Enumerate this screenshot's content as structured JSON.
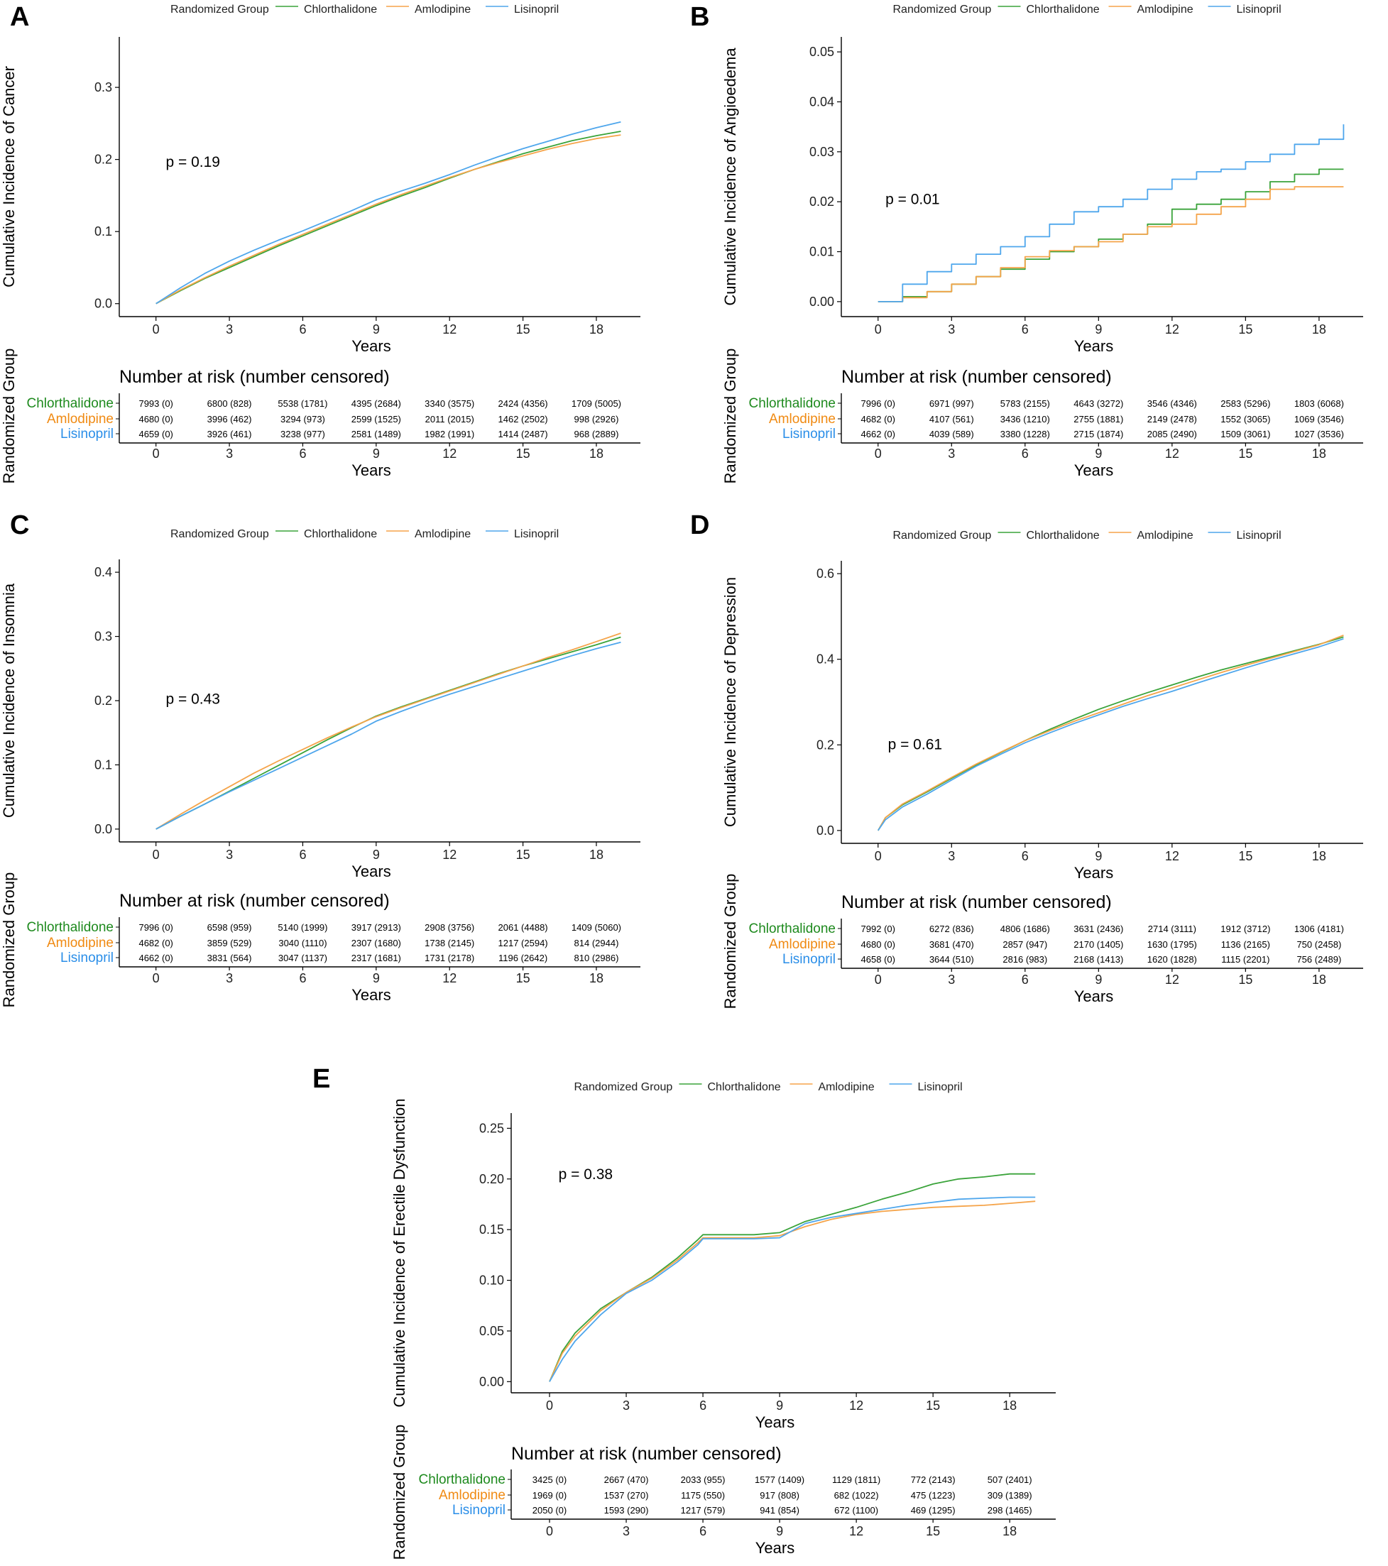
{
  "figure": {
    "panel_count": 5
  },
  "legend": {
    "title": "Randomized Group",
    "groups": [
      "Chlorthalidone",
      "Amlodipine",
      "Lisinopril"
    ],
    "colors": [
      "#3aa33a",
      "#f5a44a",
      "#4ea6ec"
    ],
    "risk_label_colors": [
      "#1e8a1e",
      "#f08a12",
      "#2a8ee8"
    ]
  },
  "risk_table": {
    "title": "Number at risk (number censored)",
    "y_label": "Randomized Group",
    "x_label": "Years"
  },
  "chart_data": [
    {
      "panel": "A",
      "type": "line",
      "title": "",
      "xlabel": "Years",
      "ylabel": "Cumulative Incidence of Cancer",
      "xlim": [
        -1.5,
        19.8
      ],
      "ylim": [
        -0.018,
        0.37
      ],
      "xticks": [
        0,
        3,
        6,
        9,
        12,
        15,
        18
      ],
      "yticks": [
        "0.0",
        "0.1",
        "0.2",
        "0.3"
      ],
      "yticks_values": [
        0,
        0.1,
        0.2,
        0.3
      ],
      "p_value": "p = 0.19",
      "p_pos": [
        0.4,
        0.19
      ],
      "series": [
        {
          "name": "Chlorthalidone",
          "x": [
            0,
            1,
            2,
            3,
            4,
            5,
            6,
            7,
            8,
            9,
            10,
            11,
            12,
            13,
            14,
            15,
            16,
            17,
            18,
            19
          ],
          "y": [
            0,
            0.018,
            0.035,
            0.05,
            0.065,
            0.08,
            0.094,
            0.108,
            0.122,
            0.136,
            0.149,
            0.161,
            0.174,
            0.186,
            0.197,
            0.208,
            0.217,
            0.226,
            0.233,
            0.239
          ]
        },
        {
          "name": "Amlodipine",
          "x": [
            0,
            1,
            2,
            3,
            4,
            5,
            6,
            7,
            8,
            9,
            10,
            11,
            12,
            13,
            14,
            15,
            16,
            17,
            18,
            19
          ],
          "y": [
            0,
            0.019,
            0.036,
            0.052,
            0.067,
            0.082,
            0.096,
            0.11,
            0.124,
            0.138,
            0.151,
            0.163,
            0.175,
            0.186,
            0.196,
            0.205,
            0.214,
            0.222,
            0.229,
            0.234
          ]
        },
        {
          "name": "Lisinopril",
          "x": [
            0,
            1,
            2,
            3,
            4,
            5,
            6,
            7,
            8,
            9,
            10,
            11,
            12,
            13,
            14,
            15,
            16,
            17,
            18,
            19
          ],
          "y": [
            0,
            0.022,
            0.042,
            0.059,
            0.074,
            0.088,
            0.101,
            0.115,
            0.129,
            0.144,
            0.156,
            0.167,
            0.179,
            0.192,
            0.204,
            0.215,
            0.225,
            0.235,
            0.244,
            0.252
          ]
        }
      ],
      "risk": [
        [
          "7993 (0)",
          "6800 (828)",
          "5538 (1781)",
          "4395 (2684)",
          "3340 (3575)",
          "2424 (4356)",
          "1709 (5005)"
        ],
        [
          "4680 (0)",
          "3996 (462)",
          "3294 (973)",
          "2599 (1525)",
          "2011 (2015)",
          "1462 (2502)",
          "998 (2926)"
        ],
        [
          "4659 (0)",
          "3926 (461)",
          "3238 (977)",
          "2581 (1489)",
          "1982 (1991)",
          "1414 (2487)",
          "968 (2889)"
        ]
      ]
    },
    {
      "panel": "B",
      "type": "line",
      "title": "",
      "xlabel": "Years",
      "ylabel": "Cumulative Incidence of Angioedema",
      "xlim": [
        -1.5,
        19.8
      ],
      "ylim": [
        -0.003,
        0.053
      ],
      "xticks": [
        0,
        3,
        6,
        9,
        12,
        15,
        18
      ],
      "yticks": [
        "0.00",
        "0.01",
        "0.02",
        "0.03",
        "0.04",
        "0.05"
      ],
      "yticks_values": [
        0,
        0.01,
        0.02,
        0.03,
        0.04,
        0.05
      ],
      "p_value": "p = 0.01",
      "p_pos": [
        0.3,
        0.0195
      ],
      "series": [
        {
          "name": "Chlorthalidone",
          "x": [
            0,
            1,
            2,
            3,
            4,
            5,
            6,
            7,
            8,
            9,
            10,
            11,
            12,
            13,
            14,
            15,
            16,
            17,
            18,
            19
          ],
          "y": [
            0,
            0.001,
            0.002,
            0.0035,
            0.005,
            0.0065,
            0.0085,
            0.01,
            0.011,
            0.0125,
            0.0135,
            0.0155,
            0.0185,
            0.0195,
            0.0205,
            0.022,
            0.024,
            0.0255,
            0.0265,
            0.0265
          ]
        },
        {
          "name": "Amlodipine",
          "x": [
            0,
            1,
            2,
            3,
            4,
            5,
            6,
            7,
            8,
            9,
            10,
            11,
            12,
            13,
            14,
            15,
            16,
            17,
            18,
            19
          ],
          "y": [
            0,
            0.0008,
            0.002,
            0.0035,
            0.005,
            0.0068,
            0.009,
            0.0102,
            0.011,
            0.012,
            0.0135,
            0.015,
            0.0155,
            0.0175,
            0.019,
            0.0205,
            0.0225,
            0.023,
            0.023,
            0.023
          ]
        },
        {
          "name": "Lisinopril",
          "x": [
            0,
            1,
            2,
            3,
            4,
            5,
            6,
            7,
            8,
            9,
            10,
            11,
            12,
            13,
            14,
            15,
            16,
            17,
            18,
            18.9,
            19
          ],
          "y": [
            0,
            0.0035,
            0.006,
            0.0075,
            0.0095,
            0.011,
            0.013,
            0.0155,
            0.018,
            0.019,
            0.0205,
            0.0225,
            0.0245,
            0.026,
            0.0265,
            0.028,
            0.0295,
            0.0315,
            0.0325,
            0.0325,
            0.0355
          ]
        }
      ],
      "risk": [
        [
          "7996 (0)",
          "6971 (997)",
          "5783 (2155)",
          "4643 (3272)",
          "3546 (4346)",
          "2583 (5296)",
          "1803 (6068)"
        ],
        [
          "4682 (0)",
          "4107 (561)",
          "3436 (1210)",
          "2755 (1881)",
          "2149 (2478)",
          "1552 (3065)",
          "1069 (3546)"
        ],
        [
          "4662 (0)",
          "4039 (589)",
          "3380 (1228)",
          "2715 (1874)",
          "2085 (2490)",
          "1509 (3061)",
          "1027 (3536)"
        ]
      ]
    },
    {
      "panel": "C",
      "type": "line",
      "title": "",
      "xlabel": "Years",
      "ylabel": "Cumulative Incidence of Insomnia",
      "xlim": [
        -1.5,
        19.8
      ],
      "ylim": [
        -0.02,
        0.42
      ],
      "xticks": [
        0,
        3,
        6,
        9,
        12,
        15,
        18
      ],
      "yticks": [
        "0.0",
        "0.1",
        "0.2",
        "0.3",
        "0.4"
      ],
      "yticks_values": [
        0,
        0.1,
        0.2,
        0.3,
        0.4
      ],
      "p_value": "p = 0.43",
      "p_pos": [
        0.4,
        0.195
      ],
      "series": [
        {
          "name": "Chlorthalidone",
          "x": [
            0,
            1,
            2,
            3,
            4,
            5,
            6,
            7,
            8,
            9,
            10,
            11,
            12,
            13,
            14,
            15,
            16,
            17,
            18,
            19
          ],
          "y": [
            0,
            0.02,
            0.039,
            0.059,
            0.079,
            0.099,
            0.119,
            0.139,
            0.158,
            0.176,
            0.19,
            0.203,
            0.216,
            0.229,
            0.242,
            0.254,
            0.265,
            0.276,
            0.287,
            0.299
          ]
        },
        {
          "name": "Amlodipine",
          "x": [
            0,
            1,
            2,
            3,
            4,
            5,
            6,
            7,
            8,
            9,
            10,
            11,
            12,
            13,
            14,
            15,
            16,
            17,
            18,
            19
          ],
          "y": [
            0,
            0.023,
            0.045,
            0.066,
            0.087,
            0.106,
            0.124,
            0.142,
            0.159,
            0.175,
            0.189,
            0.202,
            0.215,
            0.228,
            0.241,
            0.254,
            0.267,
            0.279,
            0.292,
            0.305
          ]
        },
        {
          "name": "Lisinopril",
          "x": [
            0,
            1,
            2,
            3,
            4,
            5,
            6,
            7,
            8,
            9,
            10,
            11,
            12,
            13,
            14,
            15,
            16,
            17,
            18,
            19
          ],
          "y": [
            0,
            0.02,
            0.039,
            0.058,
            0.076,
            0.094,
            0.112,
            0.13,
            0.148,
            0.168,
            0.183,
            0.197,
            0.21,
            0.222,
            0.234,
            0.246,
            0.258,
            0.27,
            0.281,
            0.291
          ]
        }
      ],
      "risk": [
        [
          "7996 (0)",
          "6598 (959)",
          "5140 (1999)",
          "3917 (2913)",
          "2908 (3756)",
          "2061 (4488)",
          "1409 (5060)"
        ],
        [
          "4682 (0)",
          "3859 (529)",
          "3040 (1110)",
          "2307 (1680)",
          "1738 (2145)",
          "1217 (2594)",
          "814 (2944)"
        ],
        [
          "4662 (0)",
          "3831 (564)",
          "3047 (1137)",
          "2317 (1681)",
          "1731 (2178)",
          "1196 (2642)",
          "810 (2986)"
        ]
      ]
    },
    {
      "panel": "D",
      "type": "line",
      "title": "",
      "xlabel": "Years",
      "ylabel": "Cumulative Incidence of Depression",
      "xlim": [
        -1.5,
        19.8
      ],
      "ylim": [
        -0.03,
        0.63
      ],
      "xticks": [
        0,
        3,
        6,
        9,
        12,
        15,
        18
      ],
      "yticks": [
        "0.0",
        "0.2",
        "0.4",
        "0.6"
      ],
      "yticks_values": [
        0,
        0.2,
        0.4,
        0.6
      ],
      "p_value": "p = 0.61",
      "p_pos": [
        0.4,
        0.19
      ],
      "series": [
        {
          "name": "Chlorthalidone",
          "x": [
            0,
            0.3,
            1,
            2,
            3,
            4,
            5,
            6,
            7,
            8,
            9,
            10,
            11,
            12,
            13,
            14,
            15,
            16,
            17,
            18,
            19
          ],
          "y": [
            0,
            0.03,
            0.06,
            0.09,
            0.122,
            0.153,
            0.182,
            0.21,
            0.236,
            0.26,
            0.283,
            0.303,
            0.322,
            0.34,
            0.358,
            0.375,
            0.39,
            0.405,
            0.42,
            0.435,
            0.452
          ]
        },
        {
          "name": "Amlodipine",
          "x": [
            0,
            0.3,
            1,
            2,
            3,
            4,
            5,
            6,
            7,
            8,
            9,
            10,
            11,
            12,
            13,
            14,
            15,
            16,
            17,
            18,
            19
          ],
          "y": [
            0,
            0.03,
            0.062,
            0.092,
            0.124,
            0.155,
            0.183,
            0.21,
            0.233,
            0.255,
            0.275,
            0.295,
            0.315,
            0.333,
            0.351,
            0.369,
            0.386,
            0.402,
            0.418,
            0.434,
            0.456
          ]
        },
        {
          "name": "Lisinopril",
          "x": [
            0,
            0.3,
            1,
            2,
            3,
            4,
            5,
            6,
            7,
            8,
            9,
            10,
            11,
            12,
            13,
            14,
            15,
            16,
            17,
            18,
            19
          ],
          "y": [
            0,
            0.025,
            0.055,
            0.085,
            0.118,
            0.15,
            0.178,
            0.205,
            0.228,
            0.25,
            0.27,
            0.29,
            0.308,
            0.325,
            0.344,
            0.362,
            0.38,
            0.397,
            0.413,
            0.429,
            0.448
          ]
        }
      ],
      "risk": [
        [
          "7992 (0)",
          "6272 (836)",
          "4806 (1686)",
          "3631 (2436)",
          "2714 (3111)",
          "1912 (3712)",
          "1306 (4181)"
        ],
        [
          "4680 (0)",
          "3681 (470)",
          "2857 (947)",
          "2170 (1405)",
          "1630 (1795)",
          "1136 (2165)",
          "750 (2458)"
        ],
        [
          "4658 (0)",
          "3644 (510)",
          "2816 (983)",
          "2168 (1413)",
          "1620 (1828)",
          "1115 (2201)",
          "756 (2489)"
        ]
      ]
    },
    {
      "panel": "E",
      "type": "line",
      "title": "",
      "xlabel": "Years",
      "ylabel": "Cumulative Incidence of Erectile Dysfunction",
      "xlim": [
        -1.5,
        19.8
      ],
      "ylim": [
        -0.011,
        0.265
      ],
      "xticks": [
        0,
        3,
        6,
        9,
        12,
        15,
        18
      ],
      "yticks": [
        "0.00",
        "0.05",
        "0.10",
        "0.15",
        "0.20",
        "0.25"
      ],
      "yticks_values": [
        0,
        0.05,
        0.1,
        0.15,
        0.2,
        0.25
      ],
      "p_value": "p = 0.38",
      "p_pos": [
        0.35,
        0.2
      ],
      "series": [
        {
          "name": "Chlorthalidone",
          "x": [
            0,
            0.5,
            1,
            2,
            3,
            4,
            5,
            5.8,
            6,
            7,
            8,
            9,
            10,
            11,
            12,
            13,
            14,
            15,
            16,
            17,
            18,
            19
          ],
          "y": [
            0,
            0.03,
            0.048,
            0.072,
            0.088,
            0.103,
            0.122,
            0.14,
            0.145,
            0.145,
            0.145,
            0.147,
            0.158,
            0.165,
            0.172,
            0.18,
            0.187,
            0.195,
            0.2,
            0.202,
            0.205,
            0.205
          ]
        },
        {
          "name": "Amlodipine",
          "x": [
            0,
            0.5,
            1,
            2,
            3,
            4,
            5,
            5.8,
            6,
            7,
            8,
            9,
            10,
            11,
            12,
            13,
            14,
            15,
            16,
            17,
            18,
            19
          ],
          "y": [
            0,
            0.028,
            0.045,
            0.07,
            0.088,
            0.102,
            0.12,
            0.137,
            0.142,
            0.142,
            0.142,
            0.144,
            0.153,
            0.16,
            0.165,
            0.168,
            0.17,
            0.172,
            0.173,
            0.174,
            0.176,
            0.178
          ]
        },
        {
          "name": "Lisinopril",
          "x": [
            0,
            0.5,
            1,
            2,
            3,
            4,
            5,
            5.8,
            6,
            7,
            8,
            9,
            10,
            11,
            12,
            13,
            14,
            15,
            16,
            17,
            18,
            19
          ],
          "y": [
            0,
            0.022,
            0.04,
            0.066,
            0.087,
            0.1,
            0.118,
            0.135,
            0.141,
            0.141,
            0.141,
            0.142,
            0.156,
            0.162,
            0.166,
            0.17,
            0.174,
            0.177,
            0.18,
            0.181,
            0.182,
            0.182
          ]
        }
      ],
      "risk": [
        [
          "3425 (0)",
          "2667 (470)",
          "2033 (955)",
          "1577 (1409)",
          "1129 (1811)",
          "772 (2143)",
          "507 (2401)"
        ],
        [
          "1969 (0)",
          "1537 (270)",
          "1175 (550)",
          "917 (808)",
          "682 (1022)",
          "475 (1223)",
          "309 (1389)"
        ],
        [
          "2050 (0)",
          "1593 (290)",
          "1217 (579)",
          "941 (854)",
          "672 (1100)",
          "469 (1295)",
          "298 (1465)"
        ]
      ]
    }
  ]
}
